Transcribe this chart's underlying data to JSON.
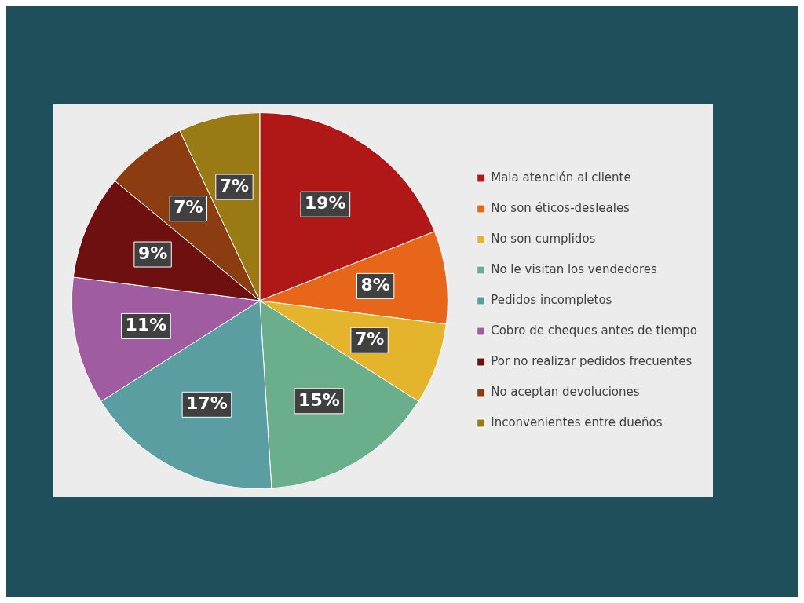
{
  "chart_data": {
    "type": "pie",
    "categories": [
      "Mala atención al cliente",
      "No son éticos-desleales",
      "No son cumplidos",
      "No le visitan los vendedores",
      "Pedidos incompletos",
      "Cobro de cheques antes de tiempo",
      "Por no realizar pedidos frecuentes",
      "No aceptan devoluciones",
      "Inconvenientes entre dueños"
    ],
    "values": [
      19,
      8,
      7,
      15,
      17,
      11,
      9,
      7,
      7
    ],
    "value_labels": [
      "19%",
      "8%",
      "7%",
      "15%",
      "17%",
      "11%",
      "9%",
      "7%",
      "7%"
    ],
    "colors": [
      "#b01818",
      "#e8661a",
      "#e3b42c",
      "#6aae8c",
      "#5b9ea2",
      "#a05ca0",
      "#6e1010",
      "#8b3c10",
      "#9a7a14"
    ],
    "legend": "right"
  }
}
